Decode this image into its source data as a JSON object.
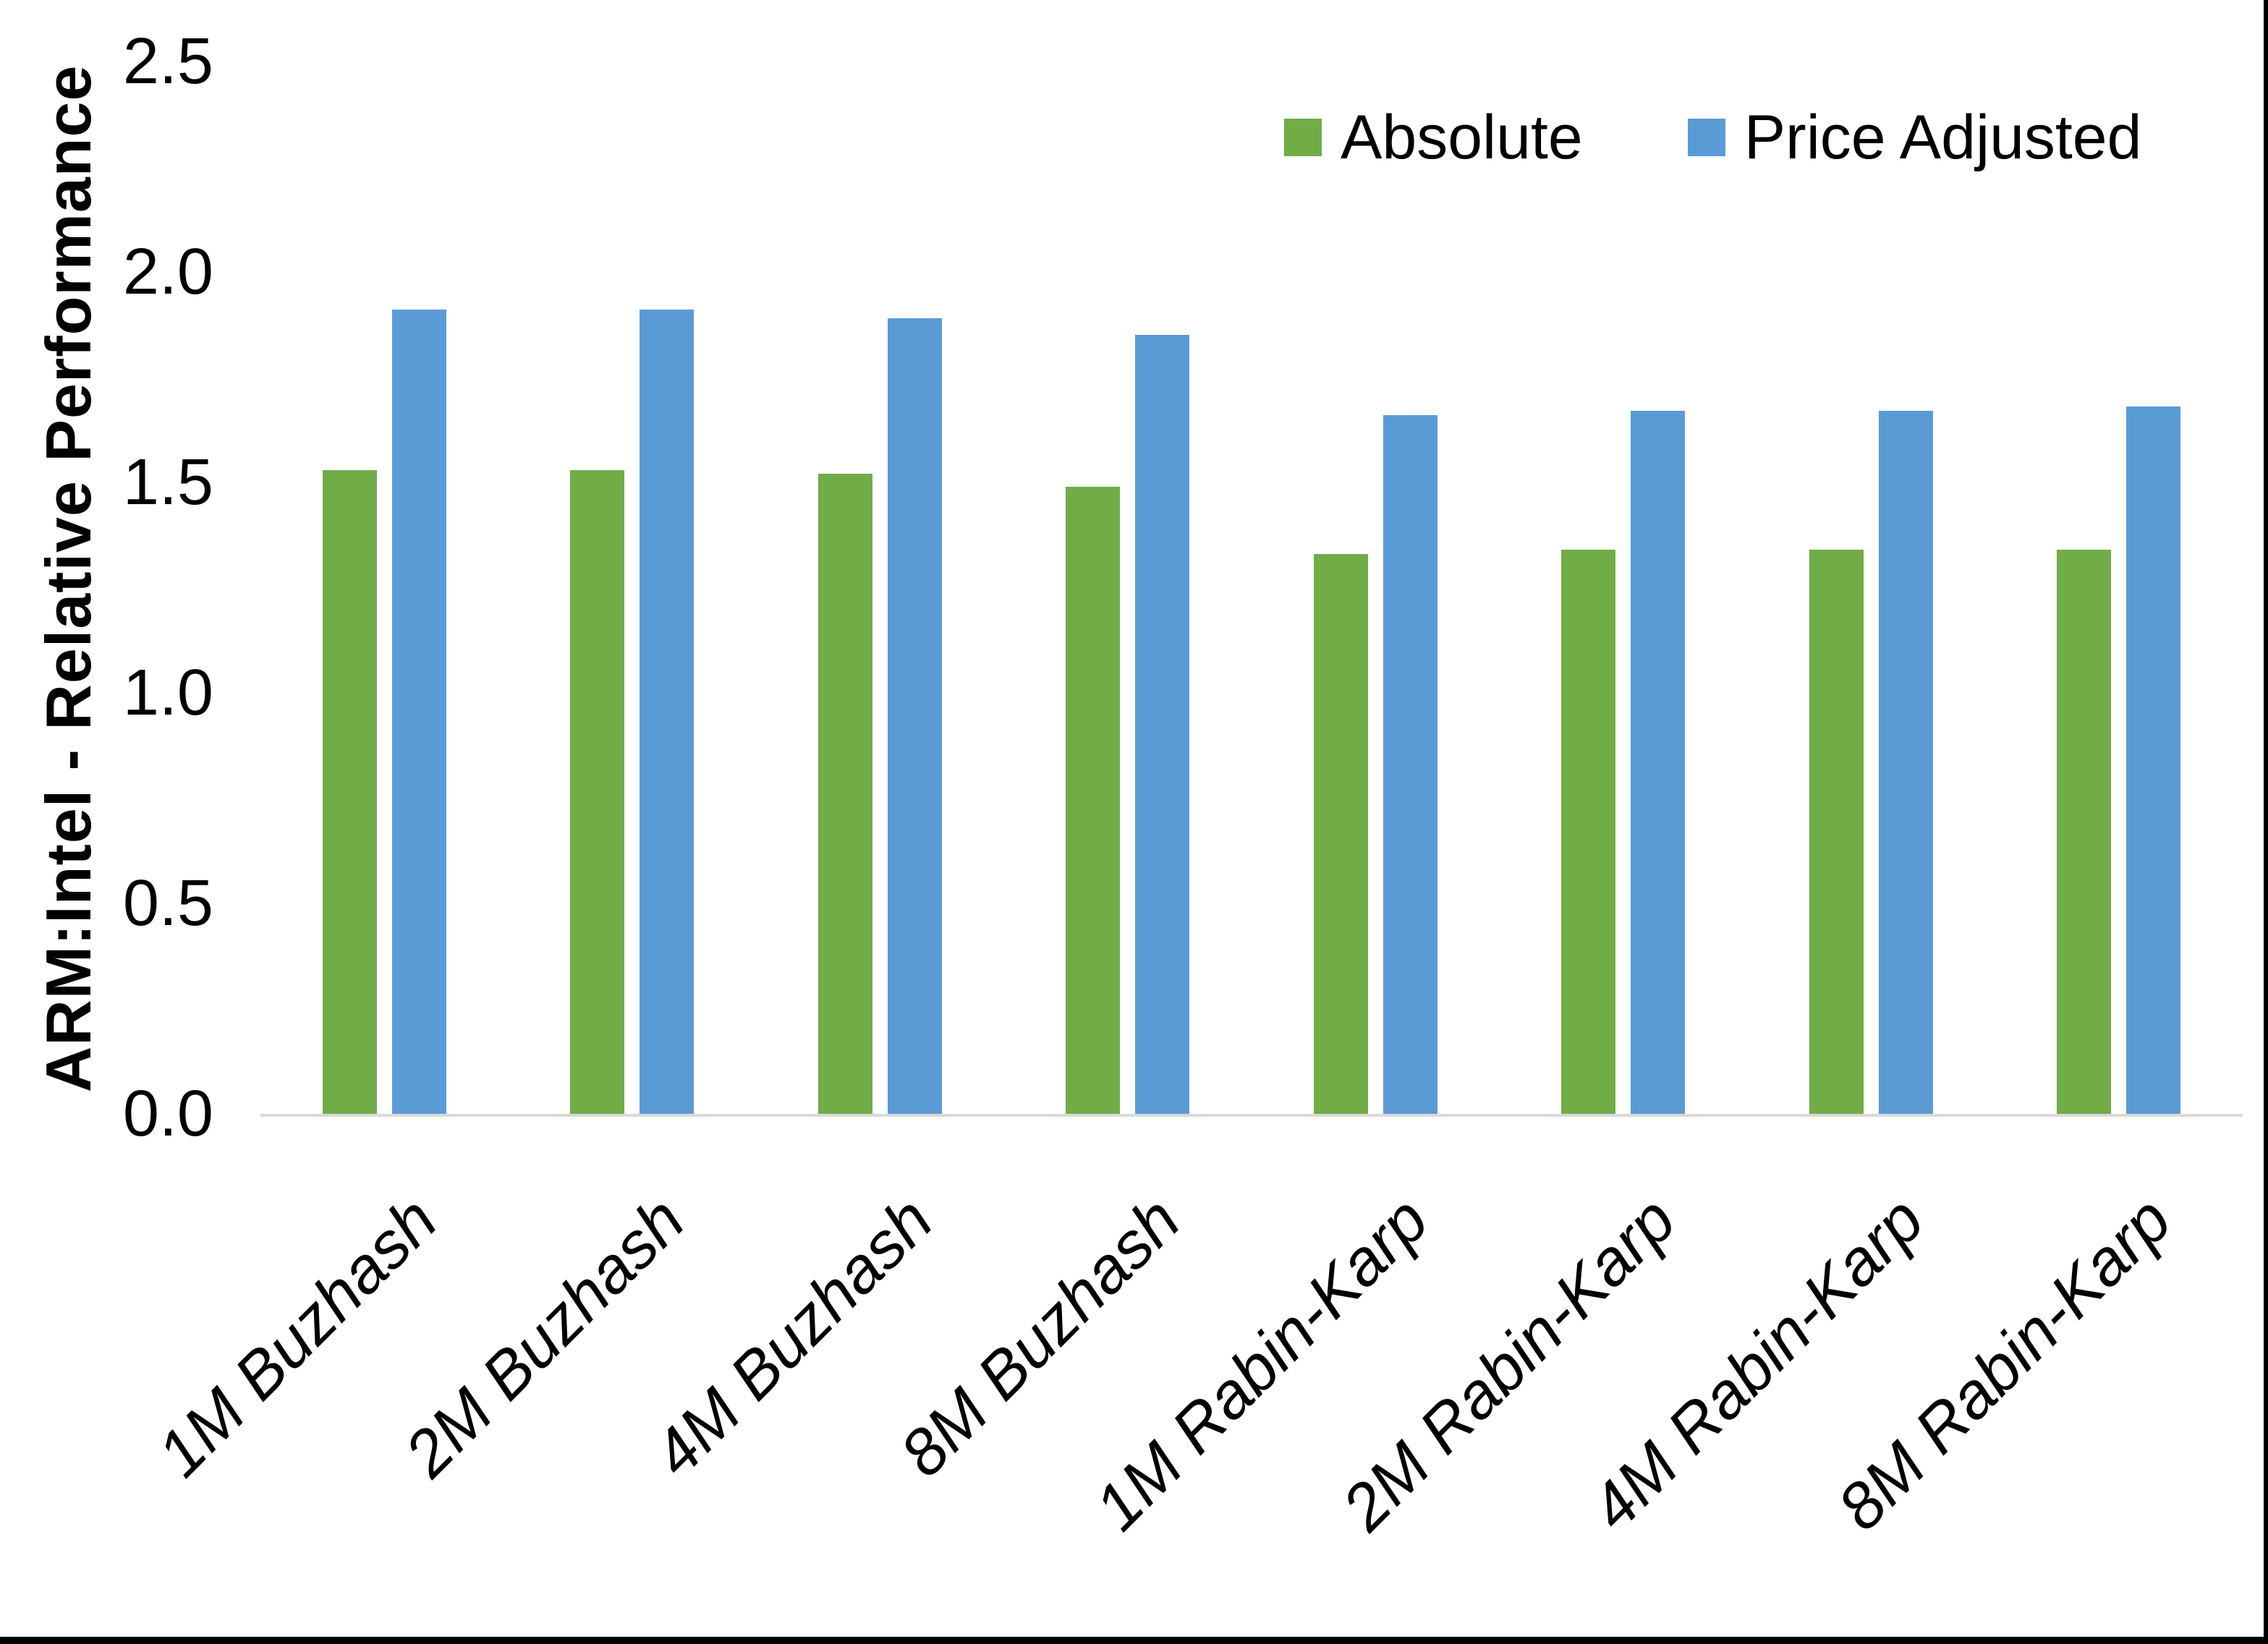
{
  "page": {
    "background": "#ffffff",
    "frame_border_color": "#000000"
  },
  "chart_data": {
    "type": "bar",
    "title": "",
    "xlabel": "",
    "ylabel": "ARM:Intel - Relative Performance",
    "ylim": [
      0,
      2.5
    ],
    "grid": false,
    "axis_line_color": "#d9d9d9",
    "legend_position": "top-right",
    "y_ticks": [
      {
        "label": "0.0",
        "value": 0.0
      },
      {
        "label": "0.5",
        "value": 0.5
      },
      {
        "label": "1.0",
        "value": 1.0
      },
      {
        "label": "1.5",
        "value": 1.5
      },
      {
        "label": "2.0",
        "value": 2.0
      },
      {
        "label": "2.5",
        "value": 2.5
      }
    ],
    "categories": [
      "1M Buzhash",
      "2M Buzhash",
      "4M Buzhash",
      "8M Buzhash",
      "1M Rabin-Karp",
      "2M Rabin-Karp",
      "4M Rabin-Karp",
      "8M Rabin-Karp"
    ],
    "series": [
      {
        "name": "Absolute",
        "color": "#70AD47",
        "values": [
          1.53,
          1.53,
          1.52,
          1.49,
          1.33,
          1.34,
          1.34,
          1.34
        ]
      },
      {
        "name": "Price Adjusted",
        "color": "#5B9BD5",
        "values": [
          1.91,
          1.91,
          1.89,
          1.85,
          1.66,
          1.67,
          1.67,
          1.68
        ]
      }
    ]
  }
}
